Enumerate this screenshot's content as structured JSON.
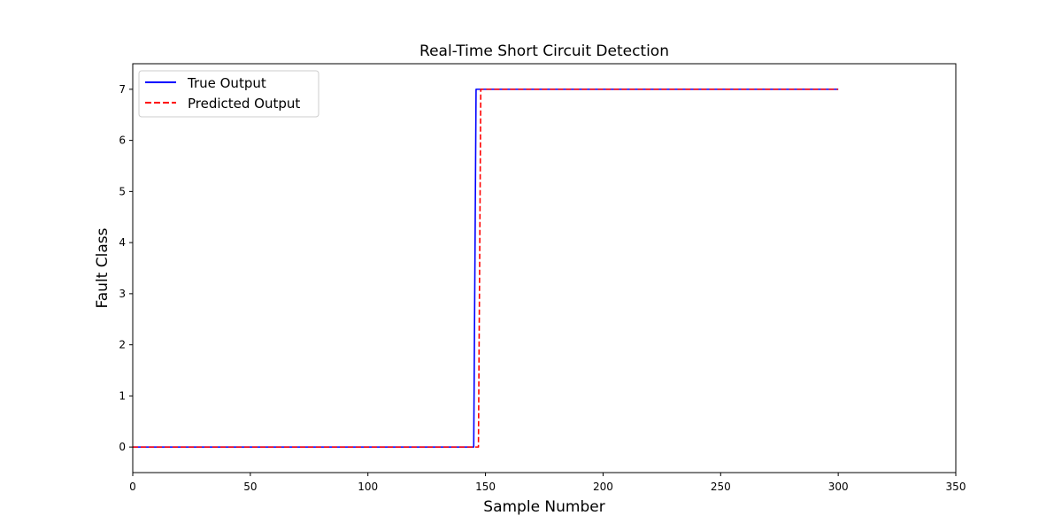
{
  "chart_data": {
    "type": "line",
    "title": "Real-Time Short Circuit Detection",
    "xlabel": "Sample Number",
    "ylabel": "Fault Class",
    "xlim": [
      0,
      350
    ],
    "ylim": [
      -0.5,
      7.5
    ],
    "xticks": [
      0,
      50,
      100,
      150,
      200,
      250,
      300,
      350
    ],
    "yticks": [
      0,
      1,
      2,
      3,
      4,
      5,
      6,
      7
    ],
    "grid": false,
    "legend_position": "top-left",
    "series": [
      {
        "name": "True Output",
        "color": "#0000ff",
        "style": "solid",
        "points": [
          [
            0,
            0
          ],
          [
            145,
            0
          ],
          [
            146,
            7
          ],
          [
            300,
            7
          ]
        ]
      },
      {
        "name": "Predicted Output",
        "color": "#ff0000",
        "style": "dashed",
        "points": [
          [
            0,
            0
          ],
          [
            147,
            0
          ],
          [
            148,
            7
          ],
          [
            300,
            7
          ]
        ]
      }
    ]
  }
}
